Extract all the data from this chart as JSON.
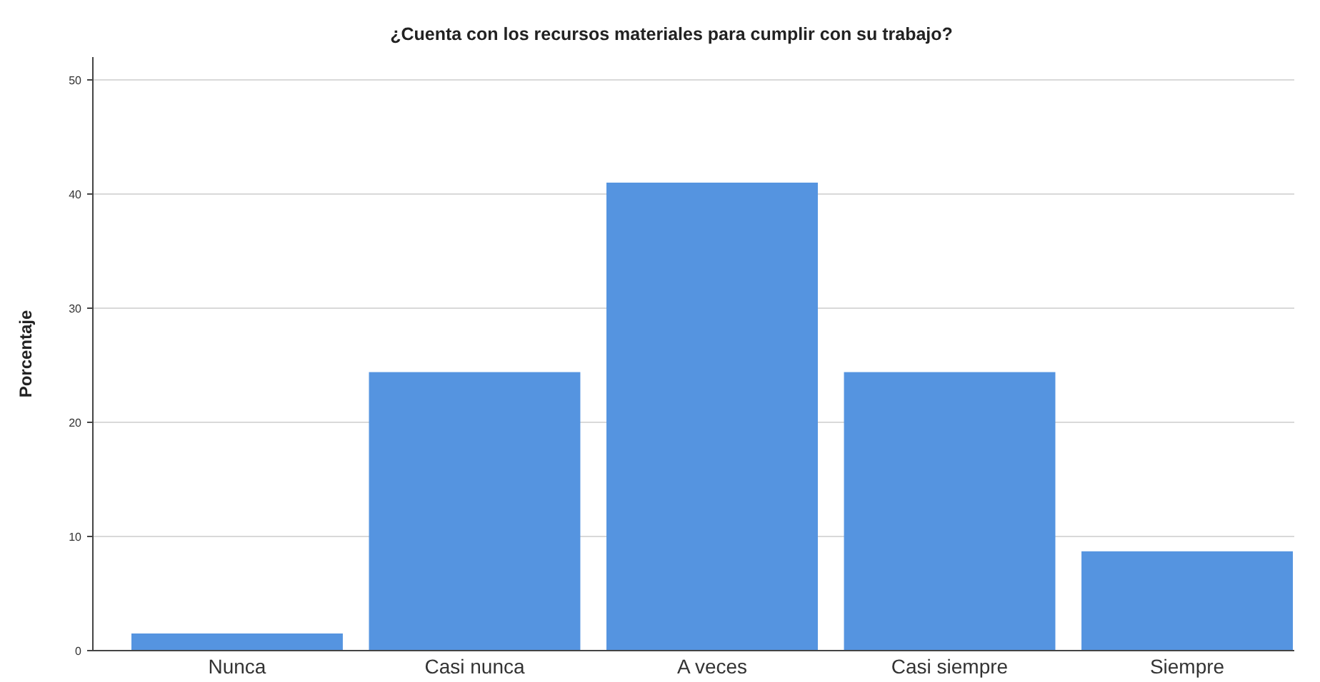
{
  "chart_data": {
    "type": "bar",
    "title": "¿Cuenta con los recursos materiales para cumplir con su trabajo?",
    "ylabel": "Porcentaje",
    "categories": [
      "Nunca",
      "Casi nunca",
      "A veces",
      "Casi siempre",
      "Siempre"
    ],
    "values": [
      1.5,
      24.4,
      41.0,
      24.4,
      8.7
    ],
    "color": "#5594e0",
    "ylim": [
      0,
      52
    ],
    "yticks": [
      0,
      10,
      20,
      30,
      40,
      50
    ],
    "grid": "y"
  }
}
